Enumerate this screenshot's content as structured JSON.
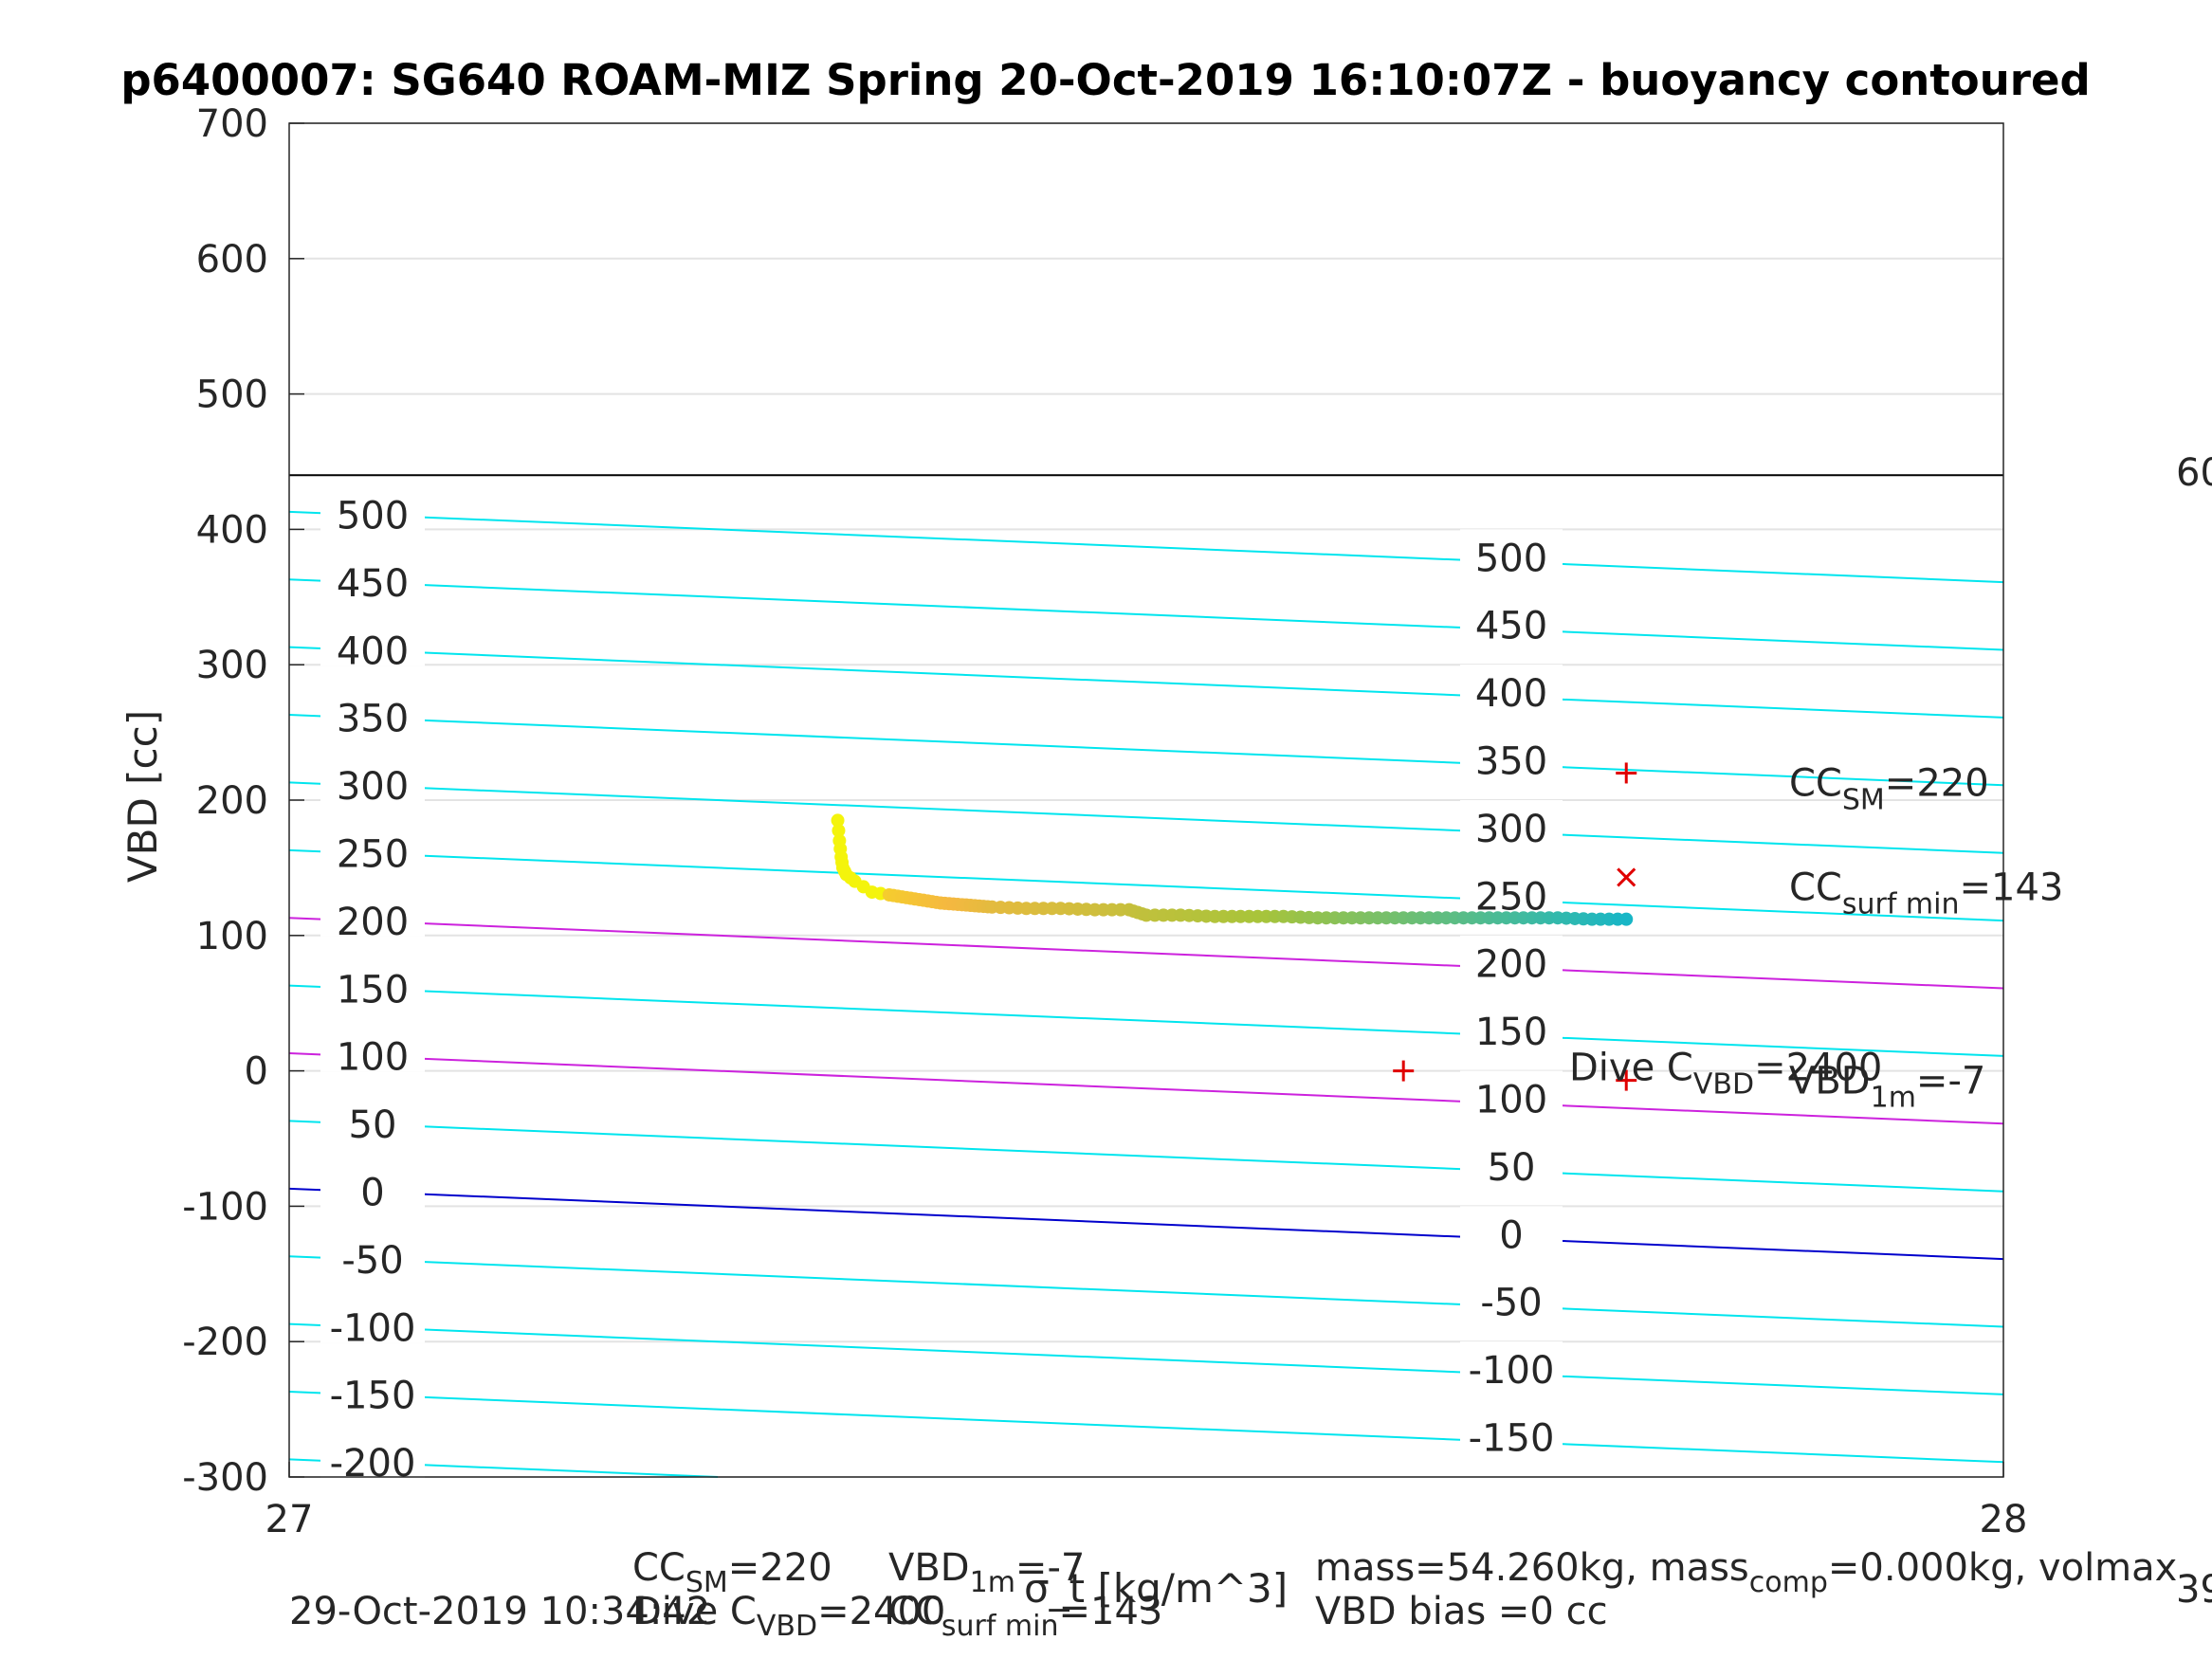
{
  "chart_data": {
    "type": "scatter",
    "title": "p6400007: SG640 ROAM-MIZ Spring 20-Oct-2019 16:10:07Z - buoyancy contoured",
    "ylabel": "VBD [cc]",
    "xlabel": "σ_t [kg/m^3]",
    "xlim": [
      27,
      28
    ],
    "ylim": [
      -300,
      700
    ],
    "x_ticks": [
      "27",
      "28"
    ],
    "y_ticks": [
      "-300",
      "-200",
      "-100",
      "0",
      "100",
      "200",
      "300",
      "400",
      "500",
      "600",
      "700"
    ],
    "grid": true,
    "limit_line": {
      "y": 440,
      "label": "60"
    },
    "contours_left_labels": [
      "500",
      "450",
      "400",
      "350",
      "300",
      "250",
      "200",
      "150",
      "100",
      "50",
      "0",
      "-50",
      "-100",
      "-150",
      "-200"
    ],
    "contours_right_labels": [
      "500",
      "450",
      "400",
      "350",
      "300",
      "250",
      "200",
      "150",
      "100",
      "50",
      "0",
      "-50",
      "-100",
      "-150"
    ],
    "contour_colors": {
      "default": "#00e5ee",
      "highlight": "#cc22dd",
      "zero": "#0000cc"
    },
    "markers": [
      {
        "name": "CC_SM",
        "x": 27.78,
        "y": 220,
        "symbol": "+",
        "label_main": "CC",
        "label_sub": "SM",
        "label_val": "=220"
      },
      {
        "name": "CC_surf_min",
        "x": 27.78,
        "y": 143,
        "symbol": "x",
        "label_main": "CC",
        "label_sub": "surf min",
        "label_val": "=143"
      },
      {
        "name": "Dive_C_VBD",
        "x": 27.65,
        "y": 0,
        "symbol": "+",
        "label_main": "Dive C",
        "label_sub": "VBD",
        "label_val": "=2400"
      },
      {
        "name": "VBD_1m",
        "x": 27.78,
        "y": -7,
        "symbol": "+",
        "label_main": "VBD",
        "label_sub": "1m",
        "label_val": "=-7"
      }
    ],
    "series": [
      {
        "x": [
          27.32,
          27.321,
          27.322,
          27.323,
          27.325,
          27.33,
          27.34,
          27.35,
          27.36,
          27.37,
          27.38,
          27.39,
          27.4,
          27.41,
          27.43,
          27.45,
          27.47,
          27.49,
          27.5,
          27.52,
          27.54,
          27.56,
          27.58,
          27.6,
          27.62,
          27.64,
          27.66,
          27.68,
          27.7,
          27.72,
          27.74,
          27.76,
          27.78
        ],
        "y": [
          185,
          170,
          158,
          150,
          145,
          140,
          132,
          130,
          128,
          126,
          124,
          123,
          122,
          121,
          120,
          120,
          119,
          119,
          115,
          115,
          114,
          114,
          114,
          113,
          113,
          113,
          113,
          113,
          113,
          113,
          113,
          112,
          112
        ]
      }
    ]
  },
  "footer": {
    "timestamp": "29-Oct-2019 10:34:42",
    "cc_sm_main": "CC",
    "cc_sm_sub": "SM",
    "cc_sm_val": "=220",
    "vbd1m_main": "VBD",
    "vbd1m_sub": "1m",
    "vbd1m_val": "=-7",
    "dive_main": "Dive C",
    "dive_sub": "VBD",
    "dive_val": "=2400",
    "ccsurf_main": "CC",
    "ccsurf_sub": "surf min",
    "ccsurf_val": "=143",
    "mass_line_a": "mass=54.260kg, mass",
    "mass_sub": "comp",
    "mass_line_b": "=0.000kg, volmax",
    "vbd_bias": "VBD bias =0 cc",
    "right_edge": "39"
  }
}
